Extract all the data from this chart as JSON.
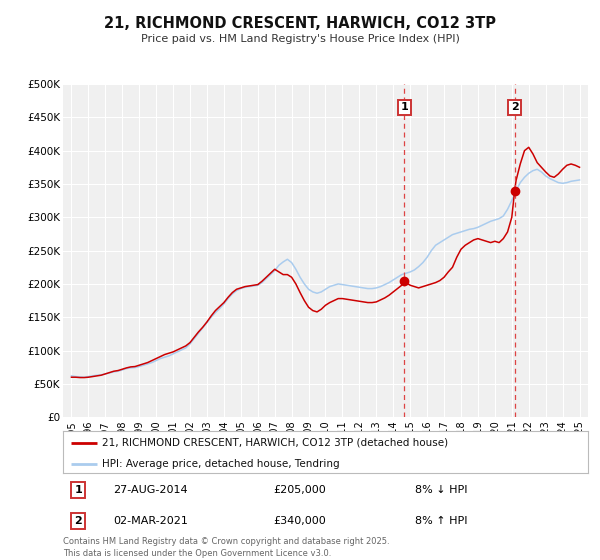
{
  "title": "21, RICHMOND CRESCENT, HARWICH, CO12 3TP",
  "subtitle": "Price paid vs. HM Land Registry's House Price Index (HPI)",
  "footer": "Contains HM Land Registry data © Crown copyright and database right 2025.\nThis data is licensed under the Open Government Licence v3.0.",
  "legend_line1": "21, RICHMOND CRESCENT, HARWICH, CO12 3TP (detached house)",
  "legend_line2": "HPI: Average price, detached house, Tendring",
  "annotation1_date": "27-AUG-2014",
  "annotation1_price": "£205,000",
  "annotation1_pct": "8% ↓ HPI",
  "annotation2_date": "02-MAR-2021",
  "annotation2_price": "£340,000",
  "annotation2_pct": "8% ↑ HPI",
  "sale1_year": 2014.66,
  "sale1_value": 205000,
  "sale2_year": 2021.17,
  "sale2_value": 340000,
  "vline1_year": 2014.66,
  "vline2_year": 2021.17,
  "red_line_color": "#cc0000",
  "blue_line_color": "#aaccee",
  "vline_color": "#dd4444",
  "dot_color": "#cc0000",
  "ylim_max": 500000,
  "ylim_min": 0,
  "ytick_values": [
    0,
    50000,
    100000,
    150000,
    200000,
    250000,
    300000,
    350000,
    400000,
    450000,
    500000
  ],
  "ytick_labels": [
    "£0",
    "£50K",
    "£100K",
    "£150K",
    "£200K",
    "£250K",
    "£300K",
    "£350K",
    "£400K",
    "£450K",
    "£500K"
  ],
  "xlim_min": 1994.5,
  "xlim_max": 2025.5,
  "xtick_years": [
    1995,
    1996,
    1997,
    1998,
    1999,
    2000,
    2001,
    2002,
    2003,
    2004,
    2005,
    2006,
    2007,
    2008,
    2009,
    2010,
    2011,
    2012,
    2013,
    2014,
    2015,
    2016,
    2017,
    2018,
    2019,
    2020,
    2021,
    2022,
    2023,
    2024,
    2025
  ],
  "background_color": "#ffffff",
  "plot_bg_color": "#f0f0f0",
  "grid_color": "#ffffff",
  "hpi_data": [
    [
      1995.0,
      62000
    ],
    [
      1995.25,
      61000
    ],
    [
      1995.5,
      60500
    ],
    [
      1995.75,
      60000
    ],
    [
      1996.0,
      61000
    ],
    [
      1996.25,
      62000
    ],
    [
      1996.5,
      63000
    ],
    [
      1996.75,
      63500
    ],
    [
      1997.0,
      65000
    ],
    [
      1997.25,
      66500
    ],
    [
      1997.5,
      68000
    ],
    [
      1997.75,
      69000
    ],
    [
      1998.0,
      71000
    ],
    [
      1998.25,
      73000
    ],
    [
      1998.5,
      74000
    ],
    [
      1998.75,
      74500
    ],
    [
      1999.0,
      76000
    ],
    [
      1999.25,
      78000
    ],
    [
      1999.5,
      80000
    ],
    [
      1999.75,
      82000
    ],
    [
      2000.0,
      85000
    ],
    [
      2000.25,
      88000
    ],
    [
      2000.5,
      90000
    ],
    [
      2000.75,
      92000
    ],
    [
      2001.0,
      95000
    ],
    [
      2001.25,
      98000
    ],
    [
      2001.5,
      101000
    ],
    [
      2001.75,
      104000
    ],
    [
      2002.0,
      110000
    ],
    [
      2002.25,
      118000
    ],
    [
      2002.5,
      126000
    ],
    [
      2002.75,
      134000
    ],
    [
      2003.0,
      142000
    ],
    [
      2003.25,
      150000
    ],
    [
      2003.5,
      157000
    ],
    [
      2003.75,
      163000
    ],
    [
      2004.0,
      170000
    ],
    [
      2004.25,
      178000
    ],
    [
      2004.5,
      185000
    ],
    [
      2004.75,
      190000
    ],
    [
      2005.0,
      193000
    ],
    [
      2005.25,
      195000
    ],
    [
      2005.5,
      196000
    ],
    [
      2005.75,
      197000
    ],
    [
      2006.0,
      198000
    ],
    [
      2006.25,
      202000
    ],
    [
      2006.5,
      208000
    ],
    [
      2006.75,
      214000
    ],
    [
      2007.0,
      220000
    ],
    [
      2007.25,
      228000
    ],
    [
      2007.5,
      233000
    ],
    [
      2007.75,
      237000
    ],
    [
      2008.0,
      232000
    ],
    [
      2008.25,
      222000
    ],
    [
      2008.5,
      210000
    ],
    [
      2008.75,
      200000
    ],
    [
      2009.0,
      192000
    ],
    [
      2009.25,
      188000
    ],
    [
      2009.5,
      186000
    ],
    [
      2009.75,
      188000
    ],
    [
      2010.0,
      192000
    ],
    [
      2010.25,
      196000
    ],
    [
      2010.5,
      198000
    ],
    [
      2010.75,
      200000
    ],
    [
      2011.0,
      199000
    ],
    [
      2011.25,
      198000
    ],
    [
      2011.5,
      197000
    ],
    [
      2011.75,
      196000
    ],
    [
      2012.0,
      195000
    ],
    [
      2012.25,
      194000
    ],
    [
      2012.5,
      193000
    ],
    [
      2012.75,
      193000
    ],
    [
      2013.0,
      194000
    ],
    [
      2013.25,
      196000
    ],
    [
      2013.5,
      199000
    ],
    [
      2013.75,
      202000
    ],
    [
      2014.0,
      206000
    ],
    [
      2014.25,
      210000
    ],
    [
      2014.5,
      214000
    ],
    [
      2014.75,
      216000
    ],
    [
      2015.0,
      218000
    ],
    [
      2015.25,
      221000
    ],
    [
      2015.5,
      226000
    ],
    [
      2015.75,
      232000
    ],
    [
      2016.0,
      240000
    ],
    [
      2016.25,
      250000
    ],
    [
      2016.5,
      258000
    ],
    [
      2016.75,
      262000
    ],
    [
      2017.0,
      266000
    ],
    [
      2017.25,
      270000
    ],
    [
      2017.5,
      274000
    ],
    [
      2017.75,
      276000
    ],
    [
      2018.0,
      278000
    ],
    [
      2018.25,
      280000
    ],
    [
      2018.5,
      282000
    ],
    [
      2018.75,
      283000
    ],
    [
      2019.0,
      285000
    ],
    [
      2019.25,
      288000
    ],
    [
      2019.5,
      291000
    ],
    [
      2019.75,
      294000
    ],
    [
      2020.0,
      296000
    ],
    [
      2020.25,
      298000
    ],
    [
      2020.5,
      302000
    ],
    [
      2020.75,
      312000
    ],
    [
      2021.0,
      325000
    ],
    [
      2021.25,
      340000
    ],
    [
      2021.5,
      352000
    ],
    [
      2021.75,
      360000
    ],
    [
      2022.0,
      366000
    ],
    [
      2022.25,
      370000
    ],
    [
      2022.5,
      372000
    ],
    [
      2022.75,
      368000
    ],
    [
      2023.0,
      362000
    ],
    [
      2023.25,
      358000
    ],
    [
      2023.5,
      355000
    ],
    [
      2023.75,
      352000
    ],
    [
      2024.0,
      351000
    ],
    [
      2024.25,
      352000
    ],
    [
      2024.5,
      354000
    ],
    [
      2024.75,
      355000
    ],
    [
      2025.0,
      356000
    ]
  ],
  "price_data": [
    [
      1995.0,
      60000
    ],
    [
      1995.25,
      60000
    ],
    [
      1995.5,
      59500
    ],
    [
      1995.75,
      59500
    ],
    [
      1996.0,
      60000
    ],
    [
      1996.25,
      61000
    ],
    [
      1996.5,
      62000
    ],
    [
      1996.75,
      63000
    ],
    [
      1997.0,
      65000
    ],
    [
      1997.25,
      67000
    ],
    [
      1997.5,
      69000
    ],
    [
      1997.75,
      70000
    ],
    [
      1998.0,
      72000
    ],
    [
      1998.25,
      74000
    ],
    [
      1998.5,
      75500
    ],
    [
      1998.75,
      76000
    ],
    [
      1999.0,
      78000
    ],
    [
      1999.25,
      80000
    ],
    [
      1999.5,
      82000
    ],
    [
      1999.75,
      85000
    ],
    [
      2000.0,
      88000
    ],
    [
      2000.25,
      91000
    ],
    [
      2000.5,
      94000
    ],
    [
      2000.75,
      96000
    ],
    [
      2001.0,
      98000
    ],
    [
      2001.25,
      101000
    ],
    [
      2001.5,
      104000
    ],
    [
      2001.75,
      107000
    ],
    [
      2002.0,
      112000
    ],
    [
      2002.25,
      120000
    ],
    [
      2002.5,
      128000
    ],
    [
      2002.75,
      135000
    ],
    [
      2003.0,
      143000
    ],
    [
      2003.25,
      152000
    ],
    [
      2003.5,
      160000
    ],
    [
      2003.75,
      166000
    ],
    [
      2004.0,
      172000
    ],
    [
      2004.25,
      180000
    ],
    [
      2004.5,
      187000
    ],
    [
      2004.75,
      192000
    ],
    [
      2005.0,
      194000
    ],
    [
      2005.25,
      196000
    ],
    [
      2005.5,
      197000
    ],
    [
      2005.75,
      198000
    ],
    [
      2006.0,
      199000
    ],
    [
      2006.25,
      204000
    ],
    [
      2006.5,
      210000
    ],
    [
      2006.75,
      216000
    ],
    [
      2007.0,
      222000
    ],
    [
      2007.25,
      218000
    ],
    [
      2007.5,
      214000
    ],
    [
      2007.75,
      214000
    ],
    [
      2008.0,
      210000
    ],
    [
      2008.25,
      200000
    ],
    [
      2008.5,
      187000
    ],
    [
      2008.75,
      175000
    ],
    [
      2009.0,
      165000
    ],
    [
      2009.25,
      160000
    ],
    [
      2009.5,
      158000
    ],
    [
      2009.75,
      162000
    ],
    [
      2010.0,
      168000
    ],
    [
      2010.25,
      172000
    ],
    [
      2010.5,
      175000
    ],
    [
      2010.75,
      178000
    ],
    [
      2011.0,
      178000
    ],
    [
      2011.25,
      177000
    ],
    [
      2011.5,
      176000
    ],
    [
      2011.75,
      175000
    ],
    [
      2012.0,
      174000
    ],
    [
      2012.25,
      173000
    ],
    [
      2012.5,
      172000
    ],
    [
      2012.75,
      172000
    ],
    [
      2013.0,
      173000
    ],
    [
      2013.25,
      176000
    ],
    [
      2013.5,
      179000
    ],
    [
      2013.75,
      183000
    ],
    [
      2014.0,
      188000
    ],
    [
      2014.25,
      193000
    ],
    [
      2014.5,
      198000
    ],
    [
      2014.66,
      205000
    ],
    [
      2014.75,
      202000
    ],
    [
      2015.0,
      198000
    ],
    [
      2015.25,
      196000
    ],
    [
      2015.5,
      194000
    ],
    [
      2015.75,
      196000
    ],
    [
      2016.0,
      198000
    ],
    [
      2016.25,
      200000
    ],
    [
      2016.5,
      202000
    ],
    [
      2016.75,
      205000
    ],
    [
      2017.0,
      210000
    ],
    [
      2017.25,
      218000
    ],
    [
      2017.5,
      225000
    ],
    [
      2017.75,
      240000
    ],
    [
      2018.0,
      252000
    ],
    [
      2018.25,
      258000
    ],
    [
      2018.5,
      262000
    ],
    [
      2018.75,
      266000
    ],
    [
      2019.0,
      268000
    ],
    [
      2019.25,
      266000
    ],
    [
      2019.5,
      264000
    ],
    [
      2019.75,
      262000
    ],
    [
      2020.0,
      264000
    ],
    [
      2020.25,
      262000
    ],
    [
      2020.5,
      268000
    ],
    [
      2020.75,
      278000
    ],
    [
      2021.0,
      300000
    ],
    [
      2021.17,
      340000
    ],
    [
      2021.25,
      355000
    ],
    [
      2021.5,
      380000
    ],
    [
      2021.75,
      400000
    ],
    [
      2022.0,
      405000
    ],
    [
      2022.25,
      395000
    ],
    [
      2022.5,
      382000
    ],
    [
      2022.75,
      375000
    ],
    [
      2023.0,
      368000
    ],
    [
      2023.25,
      362000
    ],
    [
      2023.5,
      360000
    ],
    [
      2023.75,
      365000
    ],
    [
      2024.0,
      372000
    ],
    [
      2024.25,
      378000
    ],
    [
      2024.5,
      380000
    ],
    [
      2024.75,
      378000
    ],
    [
      2025.0,
      375000
    ]
  ]
}
